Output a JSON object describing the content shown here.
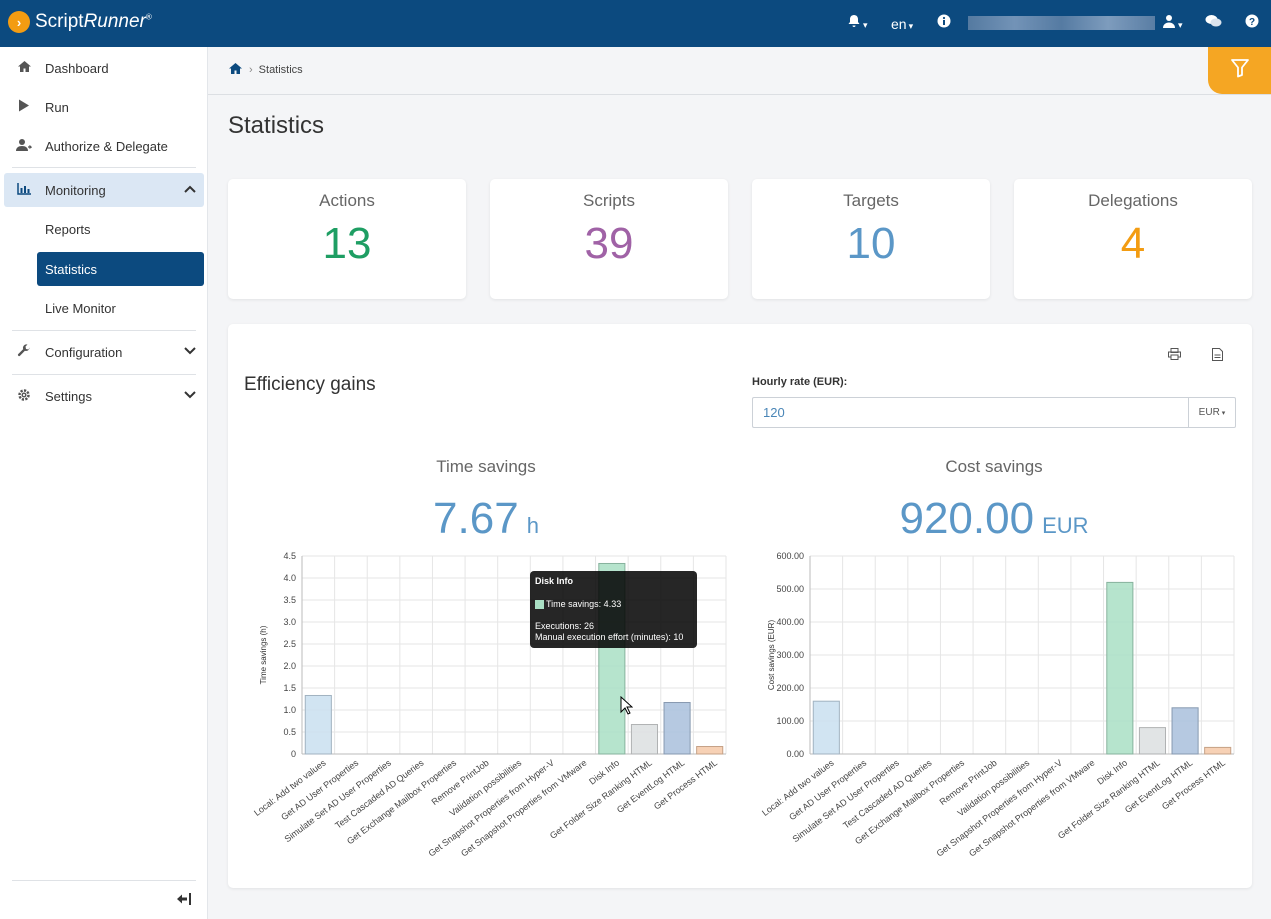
{
  "app": {
    "logo_main": "Script",
    "logo_italic": "Runner",
    "logo_reg": "®",
    "language": "en"
  },
  "breadcrumb": {
    "current": "Statistics"
  },
  "sidebar": {
    "items": [
      {
        "label": "Dashboard",
        "icon": "home-icon"
      },
      {
        "label": "Run",
        "icon": "play-icon"
      },
      {
        "label": "Authorize & Delegate",
        "icon": "user-delegate-icon"
      },
      {
        "label": "Monitoring",
        "icon": "chart-icon"
      },
      {
        "label": "Configuration",
        "icon": "wrench-icon"
      },
      {
        "label": "Settings",
        "icon": "gear-icon"
      }
    ],
    "monitoring_sub": [
      "Reports",
      "Statistics",
      "Live Monitor"
    ]
  },
  "page": {
    "title": "Statistics"
  },
  "cards": [
    {
      "label": "Actions",
      "value": "13",
      "color": "#1e9e63"
    },
    {
      "label": "Scripts",
      "value": "39",
      "color": "#a062a6"
    },
    {
      "label": "Targets",
      "value": "10",
      "color": "#5b97c7"
    },
    {
      "label": "Delegations",
      "value": "4",
      "color": "#f39c12"
    }
  ],
  "efficiency": {
    "title": "Efficiency gains",
    "rate_label": "Hourly rate (EUR):",
    "rate_value": "120",
    "currency": "EUR"
  },
  "time_savings": {
    "title": "Time savings",
    "total": "7.67",
    "unit": "h"
  },
  "cost_savings": {
    "title": "Cost savings",
    "total": "920.00",
    "unit": "EUR"
  },
  "tooltip": {
    "title": "Disk Info",
    "line1": "Time savings: 4.33",
    "line2": "Executions: 26",
    "line3": "Manual execution effort (minutes): 10"
  },
  "chart_data": [
    {
      "type": "bar",
      "title": "",
      "ylabel": "Time savings (h)",
      "ylim": [
        0,
        4.5
      ],
      "yticks": [
        "0",
        "0.5",
        "1.0",
        "1.5",
        "2.0",
        "2.5",
        "3.0",
        "3.5",
        "4.0",
        "4.5"
      ],
      "categories": [
        "Local: Add two values",
        "Get AD User Properties",
        "Simulate Set AD User Properties",
        "Test Cascaded AD Queries",
        "Get Exchange Mailbox Properties",
        "Remove PrintJob",
        "Validation possibilities",
        "Get Snapshot Properties from Hyper-V",
        "Get Snapshot Properties from VMware",
        "Disk Info",
        "Get Folder Size Ranking HTML",
        "Get EventLog HTML",
        "Get Process HTML"
      ],
      "values": [
        1.33,
        0,
        0,
        0,
        0,
        0,
        0,
        0,
        0,
        4.33,
        0.67,
        1.17,
        0.17
      ],
      "colors": [
        "#c9dff0",
        "#c9dff0",
        "#c9dff0",
        "#c9dff0",
        "#c9dff0",
        "#c9dff0",
        "#c9dff0",
        "#c9dff0",
        "#c9dff0",
        "#a9dfc4",
        "#dcdfe0",
        "#a9bfdc",
        "#f6c9a8"
      ]
    },
    {
      "type": "bar",
      "title": "",
      "ylabel": "Cost savings (EUR)",
      "ylim": [
        0,
        600
      ],
      "yticks": [
        "0.00",
        "100.00",
        "200.00",
        "300.00",
        "400.00",
        "500.00",
        "600.00"
      ],
      "categories": [
        "Local: Add two values",
        "Get AD User Properties",
        "Simulate Set AD User Properties",
        "Test Cascaded AD Queries",
        "Get Exchange Mailbox Properties",
        "Remove PrintJob",
        "Validation possibilities",
        "Get Snapshot Properties from Hyper-V",
        "Get Snapshot Properties from VMware",
        "Disk Info",
        "Get Folder Size Ranking HTML",
        "Get EventLog HTML",
        "Get Process HTML"
      ],
      "values": [
        160,
        0,
        0,
        0,
        0,
        0,
        0,
        0,
        0,
        520,
        80,
        140,
        20
      ],
      "colors": [
        "#c9dff0",
        "#c9dff0",
        "#c9dff0",
        "#c9dff0",
        "#c9dff0",
        "#c9dff0",
        "#c9dff0",
        "#c9dff0",
        "#c9dff0",
        "#a9dfc4",
        "#dcdfe0",
        "#a9bfdc",
        "#f6c9a8"
      ]
    }
  ]
}
